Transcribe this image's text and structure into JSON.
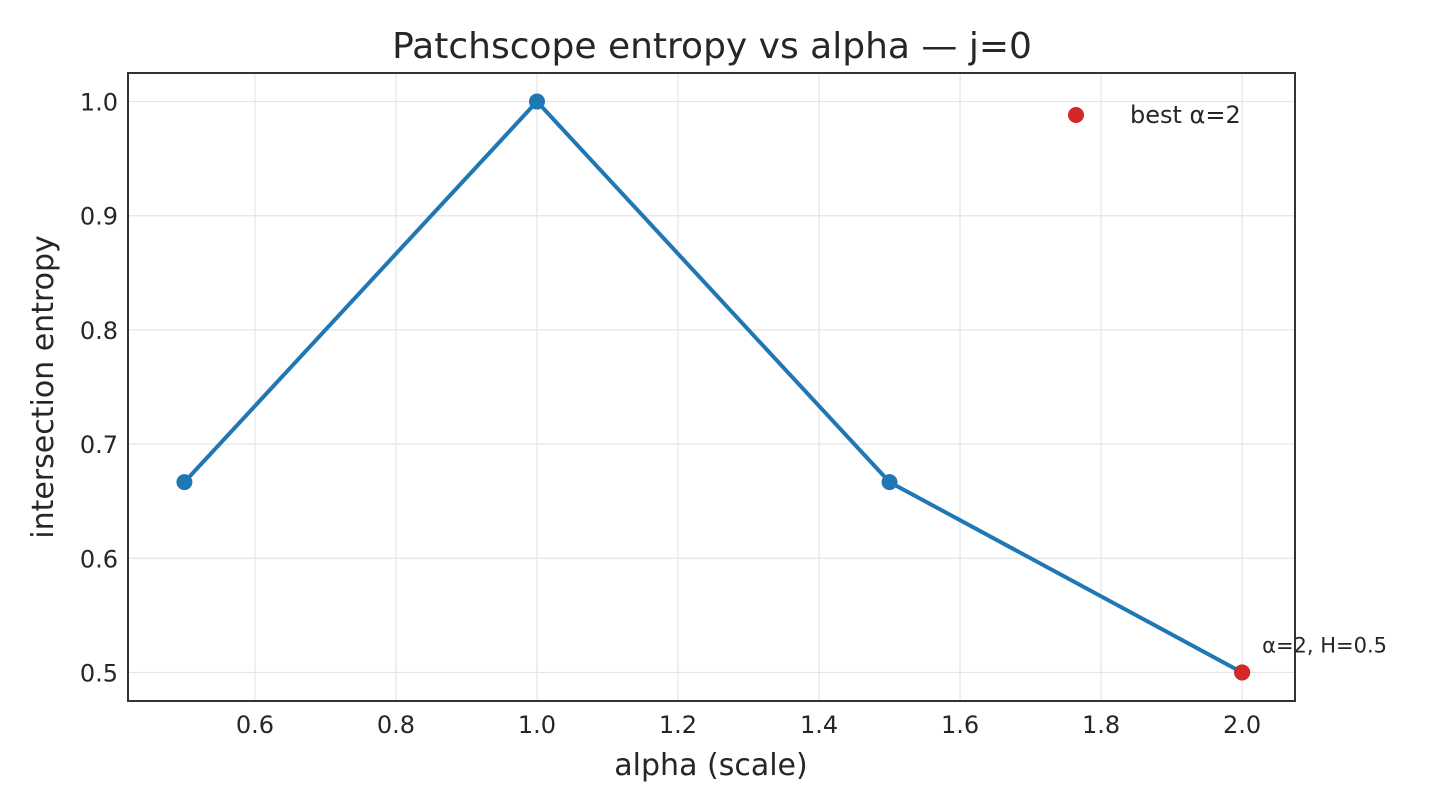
{
  "chart_data": {
    "type": "line",
    "title": "Patchscope entropy vs alpha — j=0",
    "xlabel": "alpha (scale)",
    "ylabel": "intersection entropy",
    "xlim": [
      0.42,
      2.075
    ],
    "ylim": [
      0.475,
      1.025
    ],
    "xticks": [
      0.6,
      0.8,
      1.0,
      1.2,
      1.4,
      1.6,
      1.8,
      2.0
    ],
    "xtick_labels": [
      "0.6",
      "0.8",
      "1.0",
      "1.2",
      "1.4",
      "1.6",
      "1.8",
      "2.0"
    ],
    "yticks": [
      0.5,
      0.6,
      0.7,
      0.8,
      0.9,
      1.0
    ],
    "ytick_labels": [
      "0.5",
      "0.6",
      "0.7",
      "0.8",
      "0.9",
      "1.0"
    ],
    "grid": true,
    "series": [
      {
        "x": [
          0.5,
          1.0,
          1.5,
          2.0
        ],
        "y": [
          0.6667,
          1.0,
          0.6667,
          0.5
        ],
        "color": "#1f77b4"
      }
    ],
    "highlight": {
      "name": "best α=2",
      "x": 2.0,
      "y": 0.5,
      "color": "#d62728"
    },
    "legend": {
      "position": "top-right",
      "entries": [
        {
          "label": "best α=2",
          "color": "#d62728"
        }
      ]
    },
    "annotation": {
      "text": "α=2, H=0.5",
      "x": 2.0,
      "y": 0.5
    }
  }
}
